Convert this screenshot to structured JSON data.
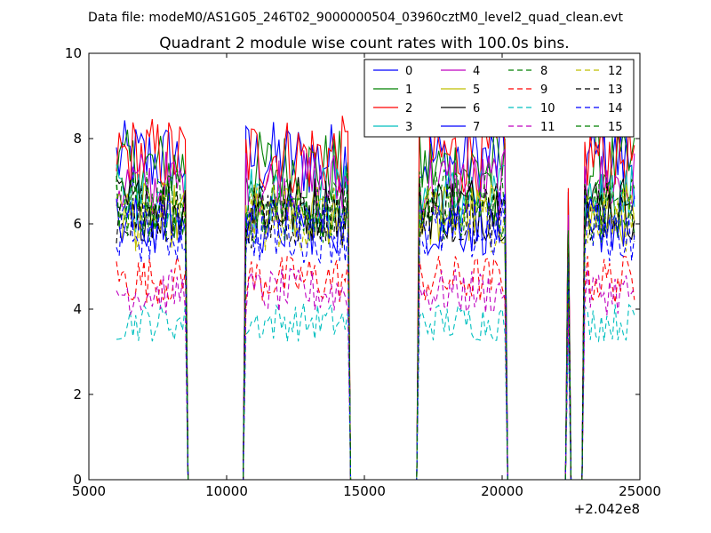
{
  "page": {
    "suptitle": "Data file: modeM0/AS1G05_246T02_9000000504_03960cztM0_level2_quad_clean.evt"
  },
  "chart_data": {
    "type": "line",
    "title": "Quadrant 2 module wise count rates with 100.0s bins.",
    "xlabel": "",
    "ylabel": "",
    "xlim": [
      5000,
      25000
    ],
    "ylim": [
      0,
      10
    ],
    "x_offset_label": "+2.042e8",
    "xticks": [
      5000,
      10000,
      15000,
      20000,
      25000
    ],
    "yticks": [
      0,
      2,
      4,
      6,
      8,
      10
    ],
    "grid": false,
    "legend_position": "top-right",
    "legend_columns": 4,
    "segments": [
      [
        6000,
        8500
      ],
      [
        10700,
        14400
      ],
      [
        17000,
        20100
      ],
      [
        23000,
        24800
      ]
    ],
    "spike": {
      "x": 22400,
      "note": "single-bin spikes"
    },
    "series": [
      {
        "name": "0",
        "color": "#0000ff",
        "dash": "solid",
        "level": 7.5
      },
      {
        "name": "1",
        "color": "#008000",
        "dash": "solid",
        "level": 7.3
      },
      {
        "name": "2",
        "color": "#ff0000",
        "dash": "solid",
        "level": 7.6
      },
      {
        "name": "3",
        "color": "#00bfbf",
        "dash": "solid",
        "level": 6.6
      },
      {
        "name": "4",
        "color": "#bf00bf",
        "dash": "solid",
        "level": 6.9
      },
      {
        "name": "5",
        "color": "#bfbf00",
        "dash": "solid",
        "level": 6.2
      },
      {
        "name": "6",
        "color": "#000000",
        "dash": "solid",
        "level": 6.4
      },
      {
        "name": "7",
        "color": "#0000ff",
        "dash": "solid",
        "level": 6.0
      },
      {
        "name": "8",
        "color": "#008000",
        "dash": "dashed",
        "level": 6.3
      },
      {
        "name": "9",
        "color": "#ff0000",
        "dash": "dashed",
        "level": 4.7
      },
      {
        "name": "10",
        "color": "#00bfbf",
        "dash": "dashed",
        "level": 3.7
      },
      {
        "name": "11",
        "color": "#bf00bf",
        "dash": "dashed",
        "level": 4.4
      },
      {
        "name": "12",
        "color": "#bfbf00",
        "dash": "dashed",
        "level": 6.1
      },
      {
        "name": "13",
        "color": "#000000",
        "dash": "dashed",
        "level": 6.2
      },
      {
        "name": "14",
        "color": "#0000ff",
        "dash": "dashed",
        "level": 5.8
      },
      {
        "name": "15",
        "color": "#008000",
        "dash": "dashed",
        "level": 6.5
      }
    ]
  }
}
